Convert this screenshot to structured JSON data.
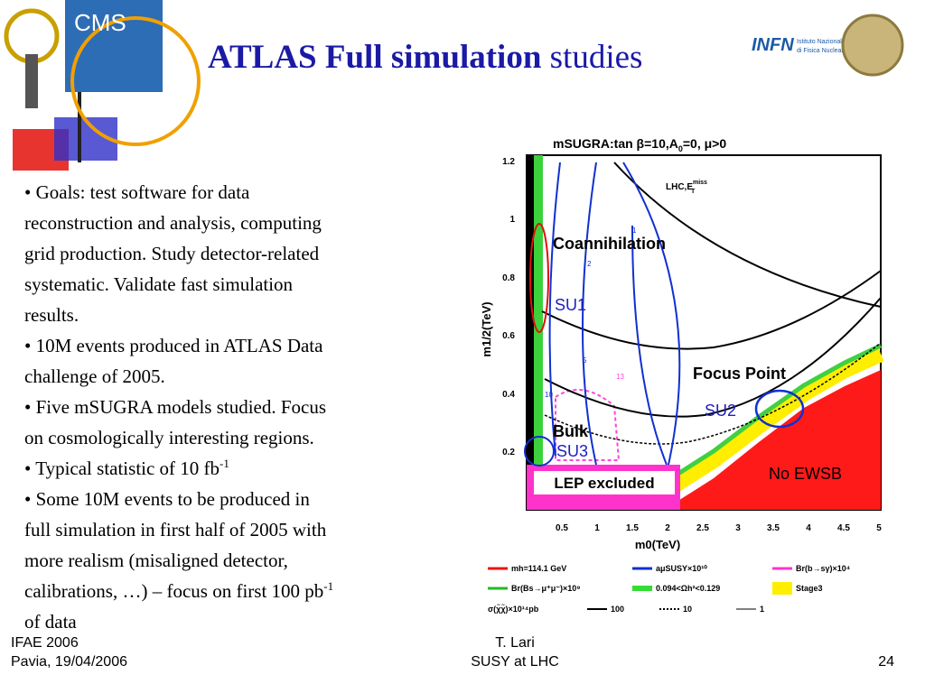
{
  "header": {
    "title_bold": "ATLAS Full simulation",
    "title_rest": "studies",
    "logos": {
      "cms": "CMS",
      "infn": "INFN",
      "infn_line1": "Istituto Nazionale",
      "infn_line2": "di Fisica Nucleare"
    }
  },
  "bullets": [
    [
      {
        "text": "• Goals: test software for data"
      },
      {
        "text": "reconstruction and analysis, computing"
      },
      {
        "text": "grid production. Study detector-related"
      },
      {
        "text": "systematic. Validate fast simulation"
      },
      {
        "text": "results."
      }
    ],
    [
      {
        "text": "• 10M events produced in ATLAS Data"
      },
      {
        "text": "challenge of 2005."
      }
    ],
    [
      {
        "text": "• Five mSUGRA models studied. Focus"
      },
      {
        "text": "on cosmologically interesting regions."
      }
    ],
    [
      {
        "text": "• Typical statistic of 10 fb",
        "sup": "-1"
      }
    ],
    [
      {
        "text": "• Some 10M events to be produced in"
      },
      {
        "text": "full simulation in first half of 2005 with"
      },
      {
        "text": "more realism (misaligned detector,"
      },
      {
        "text": "calibrations, …) – focus on first 100 pb",
        "sup": "-1"
      },
      {
        "text": "of data"
      }
    ]
  ],
  "figure": {
    "title": "mSUGRA:tan β=10,A",
    "title_sub": "0",
    "title_rest": "=0, μ>0",
    "y_label": "m1/2(TeV)",
    "x_label": "m0(TeV)",
    "y_ticks": [
      "1.2",
      "1",
      "0.8",
      "0.6",
      "0.4",
      "0.2"
    ],
    "x_ticks": [
      "0.5",
      "1",
      "1.5",
      "2",
      "2.5",
      "3",
      "3.5",
      "4",
      "4.5",
      "5"
    ],
    "lhc": "LHC,E",
    "lhc_sup": "miss",
    "lhc_sub": "T",
    "curve_labels": [
      "1",
      "2",
      "5",
      "10",
      "13"
    ],
    "regions": {
      "coannihilation": "Coannihilation",
      "su1": "SU1",
      "focus": "Focus Point",
      "su2": "SU2",
      "bulk": "Bulk",
      "su3": "SU3",
      "lep": "LEP excluded",
      "noewsb": "No EWSB"
    },
    "legend": [
      "mh=114.1 GeV",
      "aμSUSY×10¹⁰",
      "Br(b→sγ)×10⁴",
      "Br(Bs→μ⁺μ⁻)×10⁹",
      "0.094<Ωh²<0.129",
      "Stage3",
      "σ(χ̃χ̃)×10¹⁴pb",
      "100",
      "10",
      "1"
    ]
  },
  "footer": {
    "left1": "IFAE 2006",
    "left2": "Pavia, 19/04/2006",
    "center1": "T. Lari",
    "center2": "SUSY at LHC",
    "page": "24"
  }
}
